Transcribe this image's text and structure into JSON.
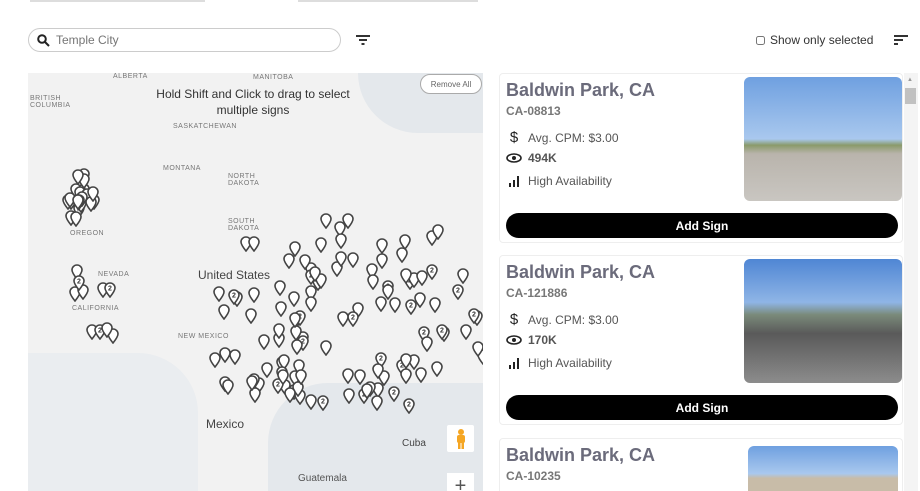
{
  "search": {
    "placeholder": "Temple City",
    "value": ""
  },
  "filters": {
    "show_only_selected": "Show only selected",
    "checked": false
  },
  "map": {
    "hint": "Hold Shift and Click to drag to select multiple signs",
    "remove_all": "Remove All",
    "labels": {
      "british_columbia": "BRITISH COLUMBIA",
      "alberta": "ALBERTA",
      "saskatchewan": "SASKATCHEWAN",
      "manitoba": "MANITOBA",
      "montana": "MONTANA",
      "north_dakota": "NORTH DAKOTA",
      "south_dakota": "SOUTH DAKOTA",
      "oregon": "OREGON",
      "nevada": "NEVADA",
      "california": "CALIFORNIA",
      "new_mexico": "NEW MEXICO",
      "united_states": "United States",
      "mexico": "Mexico",
      "cuba": "Cuba",
      "guatemala": "Guatemala"
    },
    "cluster_label": "2",
    "zoom_in": "+"
  },
  "cards": [
    {
      "title": "Baldwin Park, CA",
      "code": "CA-08813",
      "cpm": "Avg. CPM: $3.00",
      "impressions": "494K",
      "availability": "High Availability",
      "button": "Add Sign"
    },
    {
      "title": "Baldwin Park, CA",
      "code": "CA-121886",
      "cpm": "Avg. CPM: $3.00",
      "impressions": "170K",
      "availability": "High Availability",
      "button": "Add Sign"
    },
    {
      "title": "Baldwin Park, CA",
      "code": "CA-10235"
    }
  ]
}
